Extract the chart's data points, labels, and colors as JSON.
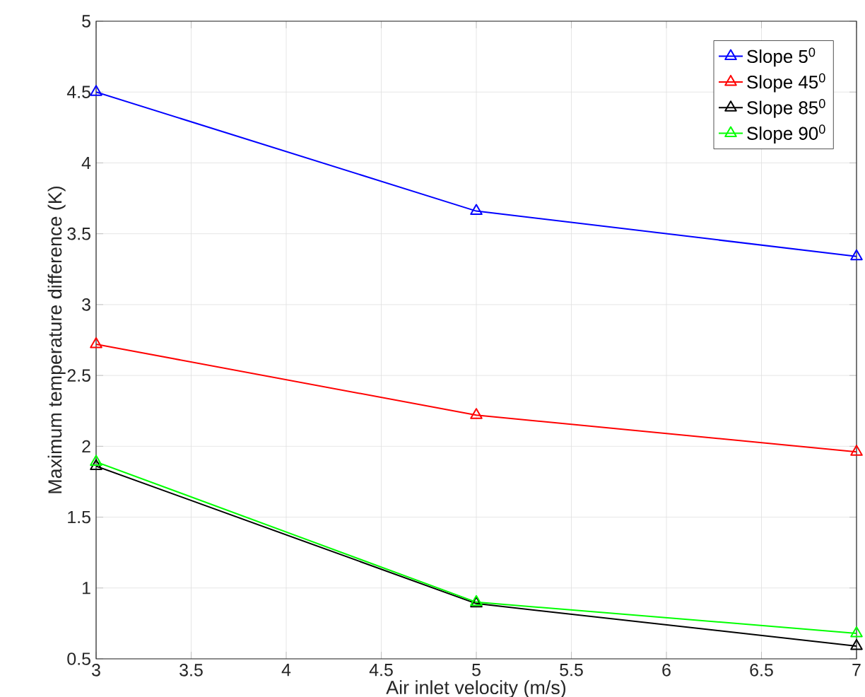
{
  "chart_data": {
    "type": "line",
    "xlabel": "Air inlet velocity (m/s)",
    "ylabel": "Maximum temperature difference (K)",
    "x": [
      3,
      5,
      7
    ],
    "series": [
      {
        "name": "Slope 5$^{0}$",
        "color": "#0000ff",
        "values": [
          4.5,
          3.66,
          3.34
        ]
      },
      {
        "name": "Slope 45$^{0}$",
        "color": "#ff0000",
        "values": [
          2.72,
          2.22,
          1.96
        ]
      },
      {
        "name": "Slope 85$^{0}$",
        "color": "#000000",
        "values": [
          1.86,
          0.89,
          0.59
        ]
      },
      {
        "name": "Slope 90$^{0}$",
        "color": "#00ff00",
        "values": [
          1.89,
          0.9,
          0.68
        ]
      }
    ],
    "xlim": [
      3,
      7
    ],
    "xticks": [
      3,
      3.5,
      4,
      4.5,
      5,
      5.5,
      6,
      6.5,
      7
    ],
    "ylim": [
      0.5,
      5
    ],
    "yticks": [
      0.5,
      1,
      1.5,
      2,
      2.5,
      3,
      3.5,
      4,
      4.5,
      5
    ],
    "grid": true,
    "legend": "top right",
    "marker": "triangle",
    "line_style": "solid"
  }
}
